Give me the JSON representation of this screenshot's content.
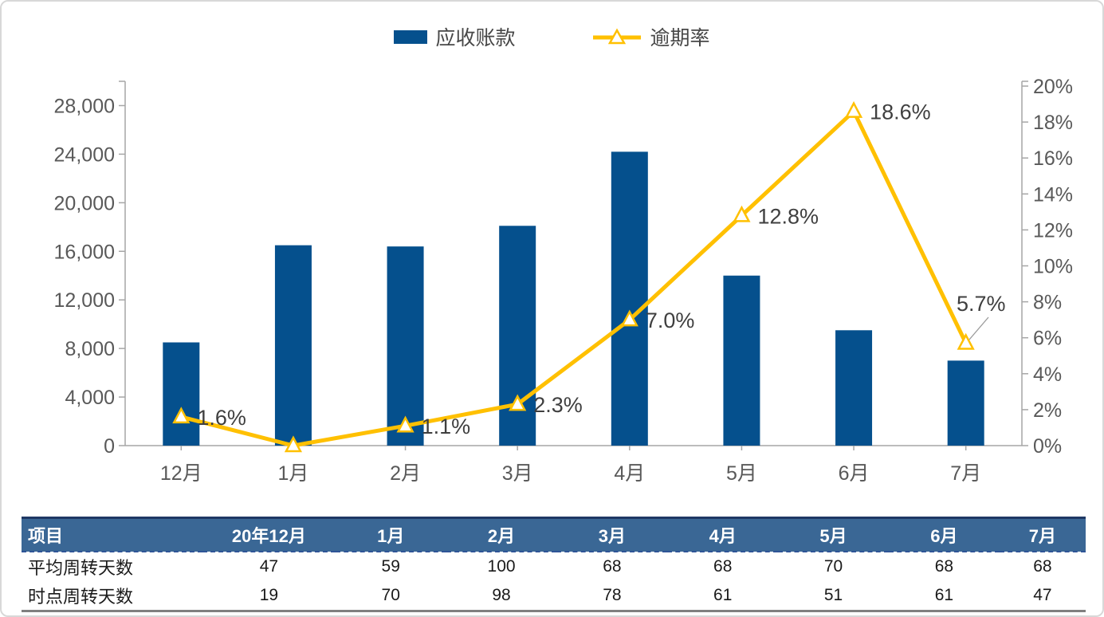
{
  "legend": {
    "bar_label": "应收账款",
    "line_label": "逾期率"
  },
  "colors": {
    "bar": "#05508D",
    "line": "#FFC000",
    "marker_fill": "#FFFFFF",
    "axis_line": "#A6A6A6",
    "axis_text": "#595959",
    "data_label_text": "#3F3F3F",
    "table_header_bg": "#3A6795",
    "table_header_top_border": "#1F3864",
    "table_header_dashed_border": "#2F5597",
    "table_bottom_border": "#808080"
  },
  "chart_data": {
    "type": "combo",
    "categories": [
      "12月",
      "1月",
      "2月",
      "3月",
      "4月",
      "5月",
      "6月",
      "7月"
    ],
    "series": [
      {
        "name": "应收账款",
        "type": "bar",
        "axis": "left",
        "values": [
          8500,
          16500,
          16400,
          18100,
          24200,
          14000,
          9500,
          7000
        ]
      },
      {
        "name": "逾期率",
        "type": "line",
        "axis": "right",
        "values": [
          1.6,
          0.0,
          1.1,
          2.3,
          7.0,
          12.8,
          18.6,
          5.7
        ],
        "point_labels": [
          "1.6%",
          "",
          "1.1%",
          "2.3%",
          "7.0%",
          "12.8%",
          "18.6%",
          "5.7%"
        ]
      }
    ],
    "left_axis": {
      "tick_labels": [
        "0",
        "4,000",
        "8,000",
        "12,000",
        "16,000",
        "20,000",
        "24,000",
        "28,000"
      ],
      "tick_values": [
        0,
        4000,
        8000,
        12000,
        16000,
        20000,
        24000,
        28000
      ],
      "range": [
        0,
        30000
      ]
    },
    "right_axis": {
      "tick_labels": [
        "0%",
        "2%",
        "4%",
        "6%",
        "8%",
        "10%",
        "12%",
        "14%",
        "16%",
        "18%",
        "20%"
      ],
      "tick_values": [
        0,
        2,
        4,
        6,
        8,
        10,
        12,
        14,
        16,
        18,
        20
      ],
      "range": [
        0,
        20
      ]
    },
    "title": "",
    "grid": false,
    "legend_position": "top"
  },
  "table": {
    "headers": [
      "项目",
      "20年12月",
      "1月",
      "2月",
      "3月",
      "4月",
      "5月",
      "6月",
      "7月"
    ],
    "rows": [
      {
        "label": "平均周转天数",
        "values": [
          "47",
          "59",
          "100",
          "68",
          "68",
          "70",
          "68",
          "68"
        ]
      },
      {
        "label": "时点周转天数",
        "values": [
          "19",
          "70",
          "98",
          "78",
          "61",
          "51",
          "61",
          "47"
        ]
      }
    ]
  }
}
